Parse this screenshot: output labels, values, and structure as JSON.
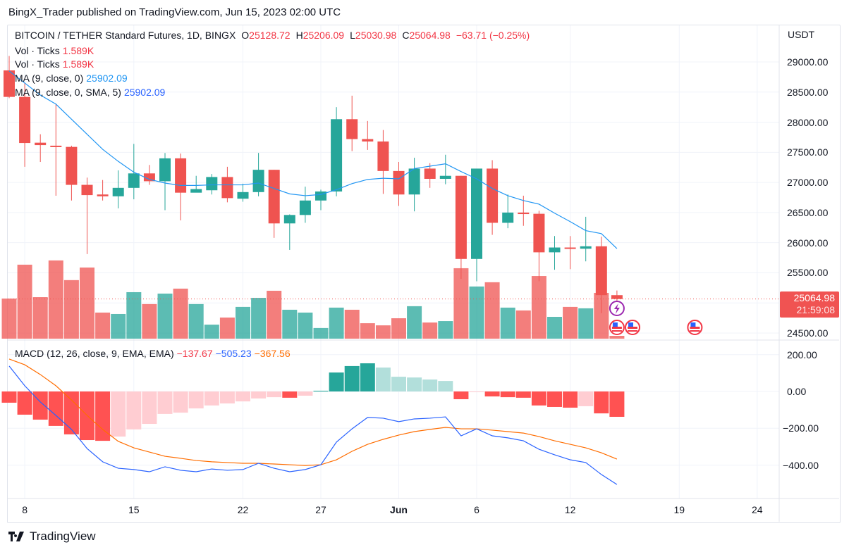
{
  "publish_line": "BingX_Trader published on TradingView.com, Jun 15, 2023 02:00 UTC",
  "legend": {
    "symbol": "BITCOIN / TETHER Standard Futures, 1D, BINGX",
    "o_label": "O",
    "o": "25128.72",
    "h_label": "H",
    "h": "25206.09",
    "l_label": "L",
    "l": "25030.98",
    "c_label": "C",
    "c": "25064.98",
    "change": "−63.71 (−0.25%)",
    "vol1_label": "Vol · Ticks",
    "vol1_value": "1.589K",
    "vol2_label": "Vol · Ticks",
    "vol2_value": "1.589K",
    "ma1_label": "MA (9, close, 0)",
    "ma1_value": "25902.09",
    "ma2_label": "MA (9, close, 0, SMA, 5)",
    "ma2_value": "25902.09",
    "macd_label": "MACD (12, 26, close, 9, EMA, EMA)",
    "macd_hist": "−137.67",
    "macd_line": "−505.23",
    "macd_signal": "−367.56"
  },
  "price_tag": {
    "price": "25064.98",
    "countdown": "21:59:08"
  },
  "footer": {
    "brand": "TradingView"
  },
  "colors": {
    "up": "#26a69a",
    "down": "#ef5350",
    "ma": "#2196f3",
    "macd": "#2962ff",
    "signal": "#ff6d00",
    "hist_up_strong": "#26a69a",
    "hist_up_weak": "#b2dfdb",
    "hist_down_strong": "#ff5252",
    "hist_down_weak": "#ffcdd2",
    "event_econ": "#f23645",
    "event_news": "#9c27b0"
  },
  "chart_data": [
    {
      "type": "candlestick",
      "title": "BITCOIN / TETHER Standard Futures, 1D, BINGX",
      "currency": "USDT",
      "dates": [
        "May 7",
        "May 8",
        "May 9",
        "May 10",
        "May 11",
        "May 12",
        "May 13",
        "May 14",
        "May 15",
        "May 16",
        "May 17",
        "May 18",
        "May 19",
        "May 20",
        "May 21",
        "May 22",
        "May 23",
        "May 24",
        "May 25",
        "May 26",
        "May 27",
        "May 28",
        "May 29",
        "May 30",
        "May 31",
        "Jun 1",
        "Jun 2",
        "Jun 3",
        "Jun 4",
        "Jun 5",
        "Jun 6",
        "Jun 7",
        "Jun 8",
        "Jun 9",
        "Jun 10",
        "Jun 11",
        "Jun 12",
        "Jun 13",
        "Jun 14",
        "Jun 15"
      ],
      "ohlc": [
        [
          28860,
          29100,
          28400,
          28420
        ],
        [
          28420,
          28650,
          27260,
          27655
        ],
        [
          27660,
          27800,
          27340,
          27620
        ],
        [
          27610,
          28300,
          26780,
          27590
        ],
        [
          27590,
          27610,
          26700,
          26960
        ],
        [
          26960,
          27080,
          25810,
          26790
        ],
        [
          26800,
          27040,
          26700,
          26770
        ],
        [
          26770,
          27200,
          26570,
          26910
        ],
        [
          26910,
          27640,
          26720,
          27150
        ],
        [
          27150,
          27290,
          26960,
          27020
        ],
        [
          27020,
          27490,
          26540,
          27400
        ],
        [
          27400,
          27480,
          26370,
          26830
        ],
        [
          26830,
          27110,
          26850,
          26890
        ],
        [
          26870,
          27140,
          26800,
          27090
        ],
        [
          27090,
          27260,
          26670,
          26740
        ],
        [
          26730,
          26980,
          26680,
          26840
        ],
        [
          26840,
          27490,
          26770,
          27210
        ],
        [
          27210,
          27210,
          26080,
          26320
        ],
        [
          26320,
          26470,
          25880,
          26460
        ],
        [
          26460,
          26930,
          26330,
          26700
        ],
        [
          26700,
          26880,
          26540,
          26850
        ],
        [
          26850,
          28250,
          26770,
          28050
        ],
        [
          28050,
          28440,
          27520,
          27720
        ],
        [
          27720,
          28020,
          27540,
          27680
        ],
        [
          27680,
          27870,
          26810,
          27190
        ],
        [
          27190,
          27340,
          26610,
          26800
        ],
        [
          26800,
          27410,
          26520,
          27230
        ],
        [
          27230,
          27320,
          26910,
          27060
        ],
        [
          27060,
          27460,
          26970,
          27110
        ],
        [
          27110,
          27110,
          25400,
          25730
        ],
        [
          25730,
          27230,
          25360,
          27230
        ],
        [
          27230,
          27370,
          26130,
          26330
        ],
        [
          26330,
          26800,
          26240,
          26500
        ],
        [
          26500,
          26780,
          26280,
          26475
        ],
        [
          26480,
          26530,
          25360,
          25840
        ],
        [
          25840,
          26110,
          25550,
          25920
        ],
        [
          25920,
          26110,
          25560,
          25910
        ],
        [
          25900,
          26430,
          25690,
          25940
        ],
        [
          25940,
          26100,
          24830,
          25130
        ],
        [
          25128.72,
          25206.09,
          25030.98,
          25064.98
        ]
      ],
      "ma9": [
        28850,
        28650,
        28450,
        28300,
        28050,
        27800,
        27550,
        27350,
        27170,
        27050,
        26990,
        26950,
        26950,
        26960,
        26960,
        26960,
        26990,
        26900,
        26810,
        26780,
        26800,
        26880,
        26980,
        27050,
        27070,
        27060,
        27230,
        27270,
        27310,
        27180,
        27060,
        26900,
        26780,
        26700,
        26640,
        26490,
        26350,
        26200,
        26150,
        25902.09
      ],
      "volume_k": [
        22.6,
        41.7,
        23.4,
        44.1,
        33,
        40.1,
        14.7,
        13.9,
        26.2,
        19.5,
        25.4,
        28.2,
        19.5,
        7.9,
        11.9,
        17.9,
        23,
        27,
        16.3,
        14.7,
        6,
        17.5,
        16.3,
        8.7,
        7.5,
        11.5,
        18.3,
        9.1,
        9.9,
        39.7,
        29.4,
        31.8,
        17.5,
        15.9,
        35.3,
        12.3,
        17.9,
        17.1,
        25.8,
        1.589
      ],
      "ylim": [
        24350,
        29300
      ],
      "yticks": [
        "29000.00",
        "28500.00",
        "28000.00",
        "27500.00",
        "27000.00",
        "26500.00",
        "26000.00",
        "25500.00",
        "25000.00",
        "24500.00"
      ],
      "xticks": [
        {
          "label": "8",
          "day": 1
        },
        {
          "label": "15",
          "day": 8
        },
        {
          "label": "22",
          "day": 15
        },
        {
          "label": "27",
          "day": 20
        },
        {
          "label": "Jun",
          "day": 25,
          "bold": true
        },
        {
          "label": "6",
          "day": 30
        },
        {
          "label": "12",
          "day": 36
        },
        {
          "label": "19",
          "day": 43
        },
        {
          "label": "24",
          "day": 48
        }
      ],
      "events": [
        {
          "type": "news",
          "day": 39
        },
        {
          "type": "us-economic",
          "day": 39
        },
        {
          "type": "us-economic",
          "day": 40
        },
        {
          "type": "us-economic",
          "day": 44
        }
      ]
    },
    {
      "type": "macd",
      "title": "MACD (12, 26, close, 9, EMA, EMA)",
      "histogram": [
        -61,
        -126,
        -153,
        -187,
        -233,
        -264,
        -268,
        -245,
        -206,
        -176,
        -122,
        -115,
        -92,
        -76,
        -65,
        -54,
        -38,
        -31,
        -34,
        -23,
        4,
        103,
        138,
        153,
        130,
        80,
        76,
        65,
        57,
        -42,
        -4,
        -27,
        -31,
        -34,
        -76,
        -84,
        -88,
        -80,
        -119,
        -137.67
      ],
      "macd": [
        138,
        31,
        -57,
        -130,
        -206,
        -310,
        -382,
        -417,
        -424,
        -436,
        -409,
        -428,
        -436,
        -421,
        -428,
        -424,
        -390,
        -417,
        -436,
        -424,
        -398,
        -275,
        -203,
        -141,
        -145,
        -164,
        -149,
        -145,
        -138,
        -241,
        -203,
        -241,
        -252,
        -268,
        -314,
        -344,
        -371,
        -386,
        -451,
        -505.23
      ],
      "signal": [
        176,
        145,
        92,
        31,
        -46,
        -130,
        -206,
        -271,
        -306,
        -329,
        -352,
        -363,
        -375,
        -382,
        -386,
        -390,
        -390,
        -394,
        -398,
        -402,
        -398,
        -371,
        -325,
        -287,
        -260,
        -237,
        -218,
        -206,
        -195,
        -203,
        -203,
        -210,
        -218,
        -226,
        -245,
        -268,
        -287,
        -306,
        -333,
        -367.56
      ],
      "yticks": [
        {
          "label": "200.00",
          "v": 200
        },
        {
          "label": "0.00",
          "v": 0
        },
        {
          "label": "−200.00",
          "v": -200
        },
        {
          "label": "−400.00",
          "v": -400
        }
      ]
    }
  ]
}
